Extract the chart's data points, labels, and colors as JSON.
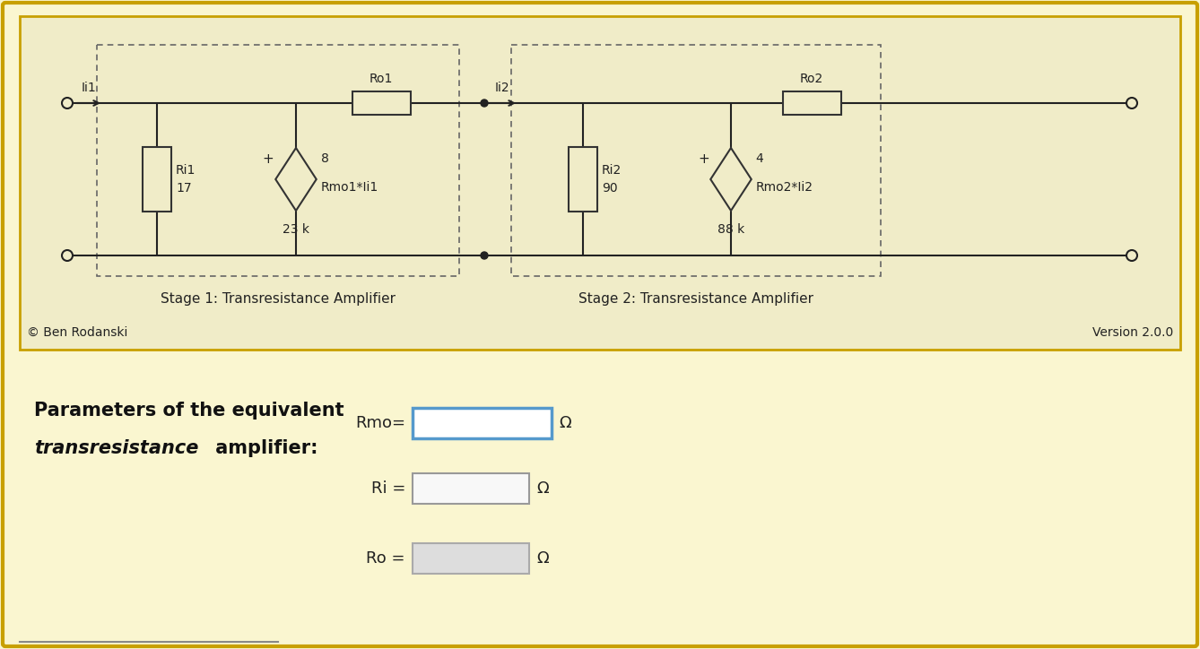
{
  "bg_outer": "#faf6d0",
  "circuit_inner_bg": "#f0ecc8",
  "circuit_box_border": "#c8a000",
  "dashed_box_color": "#666666",
  "wire_color": "#222222",
  "component_fill": "#f0ecc8",
  "component_border": "#333333",
  "text_color": "#222222",
  "stage1_label": "Stage 1: Transresistance Amplifier",
  "stage2_label": "Stage 2: Transresistance Amplifier",
  "copyright_text": "© Ben Rodanski",
  "version_text": "Version 2.0.0",
  "title_line1": "Parameters of the equivalent",
  "title_line2_italic": "transresistance",
  "title_line2_normal": " amplifier:",
  "rmo_label": "Rmo=",
  "ri_label": "Ri =",
  "ro_label": "Ro =",
  "omega": "Ω",
  "stage1": {
    "ii_label": "Ii1",
    "ro_label": "Ro1",
    "ri_label": "Ri1",
    "ri_value": "17",
    "rm_label": "Rmo1*Ii1",
    "rm_num": "8",
    "ro_value": "23 k"
  },
  "stage2": {
    "ii_label": "Ii2",
    "ro_label": "Ro2",
    "ri_label": "Ri2",
    "ri_value": "90",
    "rm_label": "Rmo2*Ii2",
    "rm_num": "4",
    "ro_value": "88 k"
  }
}
